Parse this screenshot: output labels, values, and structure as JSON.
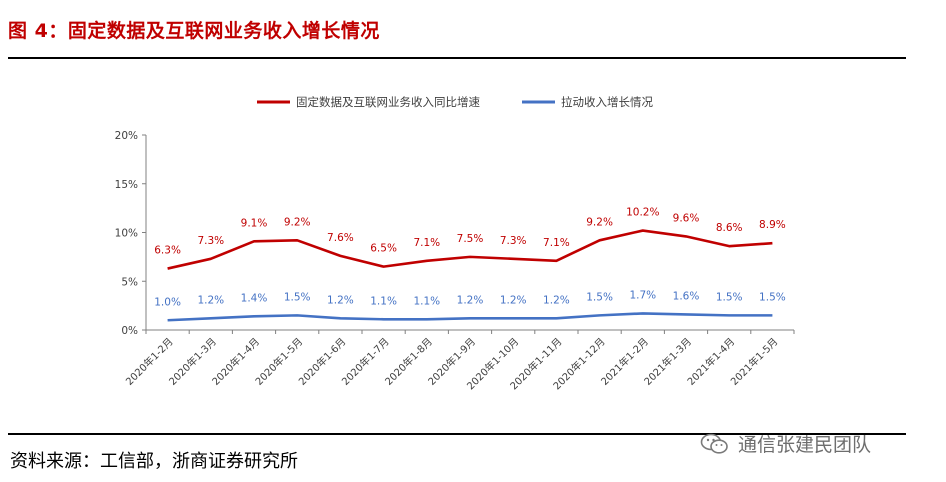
{
  "figure": {
    "title": "图 4：固定数据及互联网业务收入增长情况",
    "source": "资料来源：工信部，浙商证券研究所",
    "watermark": "通信张建民团队",
    "watermark_icon": "wechat-icon"
  },
  "colors": {
    "title": "#c00000",
    "series1": "#c00000",
    "series2": "#4472c4"
  },
  "chart_data": {
    "type": "line",
    "title": "",
    "xlabel": "",
    "ylabel": "",
    "ylim": [
      0,
      20
    ],
    "yticks": [
      "0%",
      "5%",
      "10%",
      "15%",
      "20%"
    ],
    "grid": false,
    "legend_position": "top",
    "categories": [
      "2020年1-2月",
      "2020年1-3月",
      "2020年1-4月",
      "2020年1-5月",
      "2020年1-6月",
      "2020年1-7月",
      "2020年1-8月",
      "2020年1-9月",
      "2020年1-10月",
      "2020年1-11月",
      "2020年1-12月",
      "2021年1-2月",
      "2021年1-3月",
      "2021年1-4月",
      "2021年1-5月"
    ],
    "series": [
      {
        "name": "固定数据及互联网业务收入同比增速",
        "values": [
          6.3,
          7.3,
          9.1,
          9.2,
          7.6,
          6.5,
          7.1,
          7.5,
          7.3,
          7.1,
          9.2,
          10.2,
          9.6,
          8.6,
          8.9
        ],
        "labels": [
          "6.3%",
          "7.3%",
          "9.1%",
          "9.2%",
          "7.6%",
          "6.5%",
          "7.1%",
          "7.5%",
          "7.3%",
          "7.1%",
          "9.2%",
          "10.2%",
          "9.6%",
          "8.6%",
          "8.9%"
        ]
      },
      {
        "name": "拉动收入增长情况",
        "values": [
          1.0,
          1.2,
          1.4,
          1.5,
          1.2,
          1.1,
          1.1,
          1.2,
          1.2,
          1.2,
          1.5,
          1.7,
          1.6,
          1.5,
          1.5
        ],
        "labels": [
          "1.0%",
          "1.2%",
          "1.4%",
          "1.5%",
          "1.2%",
          "1.1%",
          "1.1%",
          "1.2%",
          "1.2%",
          "1.2%",
          "1.5%",
          "1.7%",
          "1.6%",
          "1.5%",
          "1.5%"
        ]
      }
    ]
  }
}
